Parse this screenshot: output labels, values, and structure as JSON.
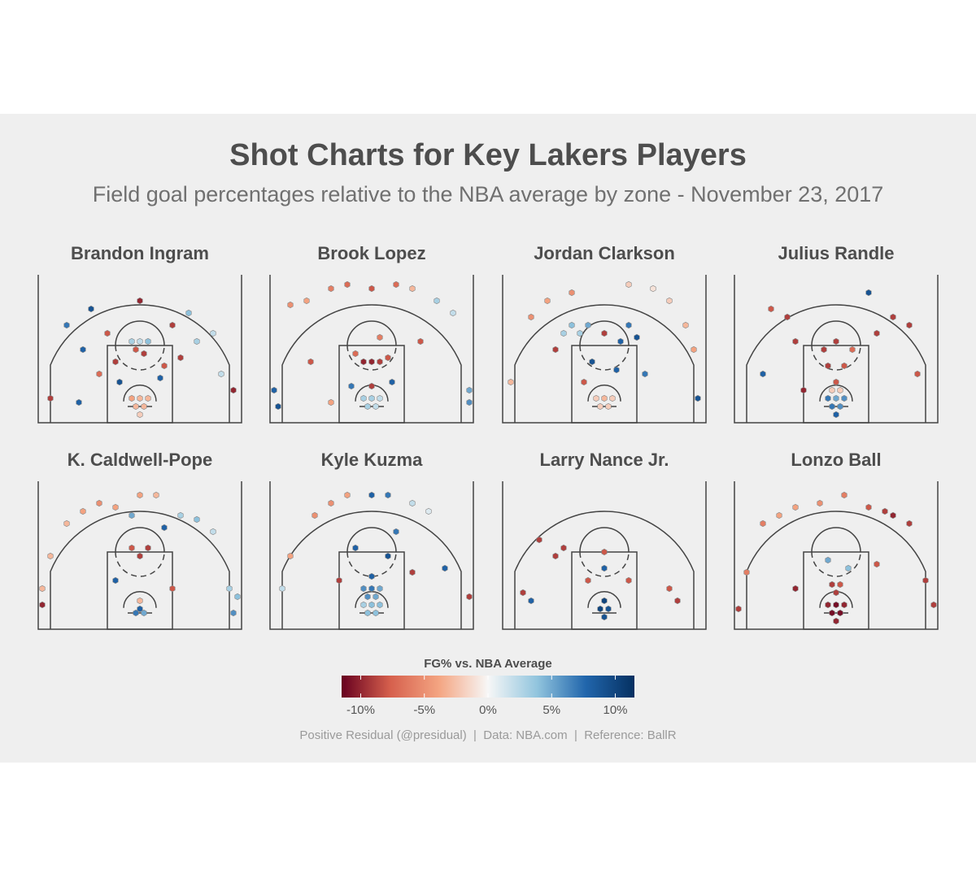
{
  "chart_data": {
    "type": "hexbin",
    "title": "Shot Charts for Key Lakers Players",
    "subtitle": "Field goal percentages relative to the NBA average by zone - November 23, 2017",
    "legend_title": "FG% vs. NBA Average",
    "caption": "Positive Residual (@presidual)  |  Data: NBA.com  |  Reference: BallR",
    "clim": [
      -11.5,
      11.5
    ],
    "cticks": [
      {
        "value": -10,
        "label": "-10%"
      },
      {
        "value": -5,
        "label": "-5%"
      },
      {
        "value": 0,
        "label": "0%"
      },
      {
        "value": 5,
        "label": "5%"
      },
      {
        "value": 10,
        "label": "10%"
      }
    ],
    "colors": [
      "#67001f",
      "#d6604d",
      "#f4a582",
      "#f7f7f7",
      "#92c5de",
      "#2166ac",
      "#053061"
    ],
    "players": [
      {
        "name": "Brandon Ingram",
        "hexes": [
          [
            -1,
            4,
            -3
          ],
          [
            1,
            4,
            -3
          ],
          [
            0,
            6,
            -3
          ],
          [
            -2,
            6,
            -4
          ],
          [
            2,
            6,
            -3
          ],
          [
            0,
            2,
            -2
          ],
          [
            -2,
            20,
            3
          ],
          [
            0,
            20,
            2
          ],
          [
            2,
            20,
            4
          ],
          [
            -1,
            18,
            -8
          ],
          [
            1,
            17,
            -9
          ],
          [
            -6,
            15,
            -9
          ],
          [
            6,
            14,
            -8
          ],
          [
            -10,
            12,
            -7
          ],
          [
            10,
            16,
            -9
          ],
          [
            -14,
            18,
            8
          ],
          [
            14,
            20,
            3
          ],
          [
            -18,
            24,
            7
          ],
          [
            -12,
            28,
            9
          ],
          [
            0,
            30,
            -10
          ],
          [
            12,
            27,
            4
          ],
          [
            18,
            22,
            2
          ],
          [
            -22,
            6,
            -9
          ],
          [
            23,
            8,
            -10
          ],
          [
            -5,
            10,
            9
          ],
          [
            5,
            11,
            8
          ],
          [
            -15,
            5,
            8
          ],
          [
            20,
            12,
            2
          ],
          [
            -8,
            22,
            -8
          ],
          [
            8,
            24,
            -9
          ]
        ]
      },
      {
        "name": "Brook Lopez",
        "hexes": [
          [
            -1,
            4,
            3
          ],
          [
            1,
            4,
            2
          ],
          [
            0,
            6,
            3
          ],
          [
            -2,
            6,
            3
          ],
          [
            2,
            6,
            2
          ],
          [
            0,
            9,
            -9
          ],
          [
            -2,
            15,
            -10
          ],
          [
            0,
            15,
            -10
          ],
          [
            2,
            15,
            -9
          ],
          [
            4,
            16,
            -8
          ],
          [
            -4,
            17,
            -7
          ],
          [
            2,
            21,
            -6
          ],
          [
            -5,
            9,
            7
          ],
          [
            5,
            10,
            8
          ],
          [
            -20,
            29,
            -5
          ],
          [
            -16,
            30,
            -4
          ],
          [
            -10,
            33,
            -6
          ],
          [
            -6,
            34,
            -7
          ],
          [
            0,
            33,
            -8
          ],
          [
            6,
            34,
            -7
          ],
          [
            10,
            33,
            -3
          ],
          [
            16,
            30,
            3
          ],
          [
            20,
            27,
            2
          ],
          [
            -24,
            8,
            8
          ],
          [
            -23,
            4,
            9
          ],
          [
            24,
            5,
            6
          ],
          [
            24,
            8,
            5
          ],
          [
            -10,
            5,
            -4
          ],
          [
            12,
            20,
            -8
          ],
          [
            -15,
            15,
            -8
          ]
        ]
      },
      {
        "name": "Jordan Clarkson",
        "hexes": [
          [
            -1,
            4,
            -2
          ],
          [
            1,
            4,
            -2
          ],
          [
            0,
            6,
            -3
          ],
          [
            -2,
            6,
            -2
          ],
          [
            2,
            6,
            -2
          ],
          [
            -6,
            22,
            3
          ],
          [
            -8,
            24,
            4
          ],
          [
            -10,
            22,
            3
          ],
          [
            -4,
            24,
            5
          ],
          [
            0,
            22,
            -9
          ],
          [
            4,
            20,
            8
          ],
          [
            6,
            24,
            7
          ],
          [
            8,
            21,
            9
          ],
          [
            -3,
            15,
            9
          ],
          [
            3,
            13,
            8
          ],
          [
            -18,
            26,
            -5
          ],
          [
            -14,
            30,
            -4
          ],
          [
            -8,
            32,
            -5
          ],
          [
            6,
            34,
            -2
          ],
          [
            12,
            33,
            -1
          ],
          [
            16,
            30,
            -2
          ],
          [
            20,
            24,
            -3
          ],
          [
            22,
            18,
            -4
          ],
          [
            -23,
            10,
            -3
          ],
          [
            23,
            6,
            9
          ],
          [
            -5,
            10,
            -8
          ],
          [
            10,
            12,
            7
          ],
          [
            -12,
            18,
            -9
          ]
        ]
      },
      {
        "name": "Julius Randle",
        "hexes": [
          [
            -1,
            4,
            7
          ],
          [
            1,
            4,
            6
          ],
          [
            0,
            6,
            5
          ],
          [
            -2,
            6,
            7
          ],
          [
            2,
            6,
            6
          ],
          [
            0,
            2,
            8
          ],
          [
            -1,
            8,
            -2
          ],
          [
            1,
            8,
            -2
          ],
          [
            0,
            10,
            -8
          ],
          [
            -2,
            14,
            -9
          ],
          [
            2,
            14,
            -8
          ],
          [
            -3,
            18,
            -9
          ],
          [
            0,
            20,
            -9
          ],
          [
            4,
            18,
            -7
          ],
          [
            -10,
            20,
            -9
          ],
          [
            10,
            22,
            -9
          ],
          [
            -16,
            28,
            -8
          ],
          [
            -12,
            26,
            -9
          ],
          [
            8,
            32,
            9
          ],
          [
            14,
            26,
            -9
          ],
          [
            18,
            24,
            -9
          ],
          [
            -18,
            12,
            8
          ],
          [
            20,
            12,
            -8
          ],
          [
            -8,
            8,
            -10
          ]
        ]
      },
      {
        "name": "K. Caldwell-Pope",
        "hexes": [
          [
            -1,
            4,
            7
          ],
          [
            0,
            5,
            8
          ],
          [
            1,
            4,
            5
          ],
          [
            0,
            7,
            -3
          ],
          [
            -2,
            20,
            -8
          ],
          [
            2,
            20,
            -9
          ],
          [
            0,
            18,
            -9
          ],
          [
            -18,
            26,
            -3
          ],
          [
            -14,
            29,
            -4
          ],
          [
            -10,
            31,
            -5
          ],
          [
            -6,
            30,
            -4
          ],
          [
            0,
            33,
            -4
          ],
          [
            4,
            33,
            -3
          ],
          [
            10,
            28,
            3
          ],
          [
            14,
            27,
            4
          ],
          [
            18,
            24,
            2
          ],
          [
            -22,
            18,
            -3
          ],
          [
            -24,
            10,
            -3
          ],
          [
            -24,
            6,
            -10
          ],
          [
            22,
            10,
            3
          ],
          [
            24,
            8,
            4
          ],
          [
            23,
            4,
            6
          ],
          [
            -6,
            12,
            8
          ],
          [
            8,
            10,
            -8
          ],
          [
            -2,
            28,
            5
          ],
          [
            6,
            25,
            8
          ]
        ]
      },
      {
        "name": "Kyle Kuzma",
        "hexes": [
          [
            -1,
            4,
            4
          ],
          [
            1,
            4,
            4
          ],
          [
            0,
            6,
            4
          ],
          [
            -2,
            6,
            3
          ],
          [
            2,
            6,
            4
          ],
          [
            -1,
            8,
            6
          ],
          [
            1,
            8,
            5
          ],
          [
            0,
            10,
            7
          ],
          [
            -2,
            10,
            6
          ],
          [
            2,
            10,
            5
          ],
          [
            0,
            13,
            8
          ],
          [
            -14,
            28,
            -5
          ],
          [
            -10,
            31,
            -5
          ],
          [
            -6,
            33,
            -4
          ],
          [
            0,
            33,
            8
          ],
          [
            4,
            33,
            7
          ],
          [
            10,
            31,
            2
          ],
          [
            14,
            29,
            1
          ],
          [
            -20,
            18,
            -4
          ],
          [
            -22,
            10,
            2
          ],
          [
            6,
            24,
            7
          ],
          [
            -4,
            20,
            8
          ],
          [
            4,
            18,
            9
          ],
          [
            -8,
            12,
            -9
          ],
          [
            10,
            14,
            -9
          ],
          [
            18,
            15,
            8
          ],
          [
            24,
            8,
            -9
          ]
        ]
      },
      {
        "name": "Larry Nance Jr.",
        "hexes": [
          [
            -1,
            5,
            10
          ],
          [
            1,
            5,
            9
          ],
          [
            0,
            7,
            10
          ],
          [
            0,
            3,
            9
          ],
          [
            0,
            15,
            8
          ],
          [
            0,
            19,
            -8
          ],
          [
            -10,
            20,
            -9
          ],
          [
            -12,
            18,
            -9
          ],
          [
            -4,
            12,
            -8
          ],
          [
            6,
            12,
            -8
          ],
          [
            -20,
            9,
            -9
          ],
          [
            -18,
            7,
            8
          ],
          [
            16,
            10,
            -8
          ],
          [
            18,
            7,
            -9
          ],
          [
            -16,
            22,
            -9
          ]
        ]
      },
      {
        "name": "Lonzo Ball",
        "hexes": [
          [
            -1,
            4,
            -11
          ],
          [
            1,
            4,
            -11
          ],
          [
            0,
            6,
            -11
          ],
          [
            -2,
            6,
            -10
          ],
          [
            2,
            6,
            -10
          ],
          [
            0,
            2,
            -10
          ],
          [
            0,
            9,
            -9
          ],
          [
            -1,
            11,
            -9
          ],
          [
            1,
            11,
            -8
          ],
          [
            3,
            15,
            4
          ],
          [
            -2,
            17,
            5
          ],
          [
            -18,
            26,
            -6
          ],
          [
            -14,
            28,
            -4
          ],
          [
            -10,
            30,
            -4
          ],
          [
            -4,
            31,
            -5
          ],
          [
            2,
            33,
            -6
          ],
          [
            8,
            30,
            -8
          ],
          [
            12,
            29,
            -9
          ],
          [
            14,
            28,
            -10
          ],
          [
            18,
            26,
            -9
          ],
          [
            -22,
            14,
            -6
          ],
          [
            22,
            12,
            -9
          ],
          [
            24,
            6,
            -9
          ],
          [
            -24,
            5,
            -9
          ],
          [
            -10,
            10,
            -10
          ],
          [
            10,
            16,
            -8
          ]
        ]
      }
    ]
  }
}
